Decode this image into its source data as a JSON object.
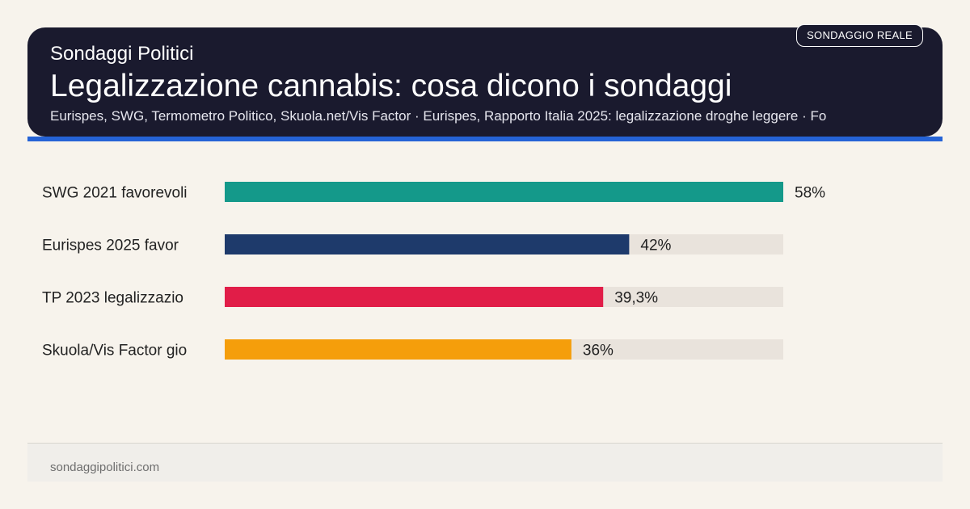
{
  "header": {
    "brand": "Sondaggi Politici",
    "title": "Legalizzazione cannabis: cosa dicono i sondaggi",
    "sources": "Eurispes, SWG, Termometro Politico, Skuola.net/Vis Factor · Eurispes, Rapporto Italia 2025: legalizzazione droghe leggere · Fo",
    "badge": "SONDAGGIO REALE"
  },
  "footer": {
    "site": "sondaggipolitici.com"
  },
  "colors": {
    "header_bg": "#1a1a2e",
    "accent": "#2563d6",
    "track": "#e9e3dc",
    "bars": [
      "#14998a",
      "#1e3a6b",
      "#e11d48",
      "#f59e0b"
    ]
  },
  "chart_data": {
    "type": "bar",
    "orientation": "horizontal",
    "categories": [
      "SWG 2021 favorevoli",
      "Eurispes 2025 favor",
      "TP 2023 legalizzazio",
      "Skuola/Vis Factor gio"
    ],
    "values": [
      58,
      42,
      39.3,
      36
    ],
    "value_labels": [
      "58%",
      "42%",
      "39,3%",
      "36%"
    ],
    "xlim": [
      0,
      58
    ],
    "grid": false,
    "legend": "none"
  }
}
